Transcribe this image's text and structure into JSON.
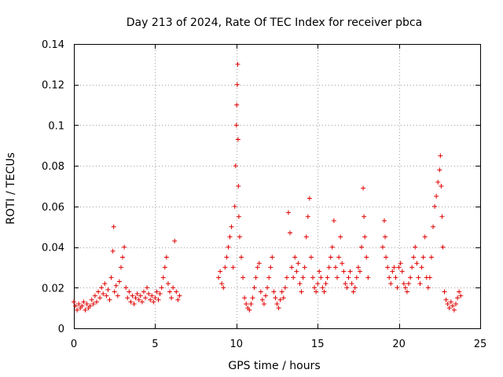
{
  "chart_data": {
    "type": "scatter",
    "title": "Day 213 of 2024, Rate Of TEC Index for receiver pbca",
    "xlabel": "GPS time / hours",
    "ylabel": "ROTI / TECUs",
    "xlim": [
      0,
      25
    ],
    "ylim": [
      0,
      0.14
    ],
    "xticks": [
      0,
      5,
      10,
      15,
      20,
      25
    ],
    "yticks": [
      0,
      0.02,
      0.04,
      0.06,
      0.08,
      0.1,
      0.12,
      0.14
    ],
    "xtick_labels": [
      "0",
      "5",
      "10",
      "15",
      "20",
      "25"
    ],
    "ytick_labels": [
      "0",
      "0.02",
      "0.04",
      "0.06",
      "0.08",
      "0.1",
      "0.12",
      "0.14"
    ],
    "grid": true,
    "marker": "+",
    "color": "#e00000",
    "series": [
      {
        "name": "ROTI",
        "points": [
          [
            0.0,
            0.013
          ],
          [
            0.1,
            0.011
          ],
          [
            0.2,
            0.009
          ],
          [
            0.3,
            0.012
          ],
          [
            0.4,
            0.01
          ],
          [
            0.5,
            0.011
          ],
          [
            0.6,
            0.013
          ],
          [
            0.7,
            0.009
          ],
          [
            0.8,
            0.012
          ],
          [
            0.9,
            0.01
          ],
          [
            1.0,
            0.011
          ],
          [
            1.1,
            0.014
          ],
          [
            1.2,
            0.012
          ],
          [
            1.3,
            0.016
          ],
          [
            1.4,
            0.013
          ],
          [
            1.5,
            0.018
          ],
          [
            1.6,
            0.015
          ],
          [
            1.7,
            0.02
          ],
          [
            1.8,
            0.017
          ],
          [
            1.9,
            0.022
          ],
          [
            2.0,
            0.016
          ],
          [
            2.1,
            0.019
          ],
          [
            2.2,
            0.014
          ],
          [
            2.3,
            0.025
          ],
          [
            2.4,
            0.038
          ],
          [
            2.45,
            0.05
          ],
          [
            2.5,
            0.018
          ],
          [
            2.6,
            0.021
          ],
          [
            2.7,
            0.016
          ],
          [
            2.8,
            0.023
          ],
          [
            2.9,
            0.03
          ],
          [
            3.0,
            0.035
          ],
          [
            3.1,
            0.04
          ],
          [
            3.2,
            0.02
          ],
          [
            3.3,
            0.015
          ],
          [
            3.4,
            0.018
          ],
          [
            3.5,
            0.013
          ],
          [
            3.6,
            0.016
          ],
          [
            3.7,
            0.012
          ],
          [
            3.8,
            0.015
          ],
          [
            3.9,
            0.017
          ],
          [
            4.0,
            0.014
          ],
          [
            4.1,
            0.016
          ],
          [
            4.2,
            0.013
          ],
          [
            4.3,
            0.018
          ],
          [
            4.4,
            0.015
          ],
          [
            4.5,
            0.02
          ],
          [
            4.6,
            0.017
          ],
          [
            4.7,
            0.014
          ],
          [
            4.8,
            0.016
          ],
          [
            4.9,
            0.013
          ],
          [
            5.0,
            0.015
          ],
          [
            5.1,
            0.018
          ],
          [
            5.2,
            0.014
          ],
          [
            5.3,
            0.017
          ],
          [
            5.4,
            0.02
          ],
          [
            5.5,
            0.025
          ],
          [
            5.6,
            0.03
          ],
          [
            5.7,
            0.035
          ],
          [
            5.8,
            0.022
          ],
          [
            5.9,
            0.018
          ],
          [
            6.0,
            0.015
          ],
          [
            6.1,
            0.02
          ],
          [
            6.2,
            0.043
          ],
          [
            6.3,
            0.018
          ],
          [
            6.4,
            0.014
          ],
          [
            6.5,
            0.016
          ],
          [
            8.9,
            0.025
          ],
          [
            9.0,
            0.028
          ],
          [
            9.1,
            0.022
          ],
          [
            9.2,
            0.02
          ],
          [
            9.3,
            0.03
          ],
          [
            9.4,
            0.035
          ],
          [
            9.5,
            0.04
          ],
          [
            9.6,
            0.045
          ],
          [
            9.7,
            0.05
          ],
          [
            9.8,
            0.03
          ],
          [
            9.9,
            0.06
          ],
          [
            9.95,
            0.08
          ],
          [
            10.0,
            0.1
          ],
          [
            10.02,
            0.11
          ],
          [
            10.05,
            0.12
          ],
          [
            10.08,
            0.13
          ],
          [
            10.1,
            0.093
          ],
          [
            10.12,
            0.07
          ],
          [
            10.15,
            0.055
          ],
          [
            10.2,
            0.045
          ],
          [
            10.3,
            0.035
          ],
          [
            10.4,
            0.025
          ],
          [
            10.5,
            0.015
          ],
          [
            10.6,
            0.012
          ],
          [
            10.7,
            0.01
          ],
          [
            10.8,
            0.009
          ],
          [
            10.9,
            0.012
          ],
          [
            11.0,
            0.015
          ],
          [
            11.1,
            0.02
          ],
          [
            11.2,
            0.025
          ],
          [
            11.3,
            0.03
          ],
          [
            11.4,
            0.032
          ],
          [
            11.5,
            0.018
          ],
          [
            11.6,
            0.014
          ],
          [
            11.7,
            0.012
          ],
          [
            11.8,
            0.016
          ],
          [
            11.9,
            0.02
          ],
          [
            12.0,
            0.025
          ],
          [
            12.1,
            0.03
          ],
          [
            12.2,
            0.035
          ],
          [
            12.3,
            0.018
          ],
          [
            12.4,
            0.015
          ],
          [
            12.5,
            0.012
          ],
          [
            12.6,
            0.01
          ],
          [
            12.7,
            0.014
          ],
          [
            12.8,
            0.018
          ],
          [
            12.9,
            0.015
          ],
          [
            13.0,
            0.02
          ],
          [
            13.1,
            0.025
          ],
          [
            13.2,
            0.057
          ],
          [
            13.3,
            0.047
          ],
          [
            13.4,
            0.03
          ],
          [
            13.5,
            0.025
          ],
          [
            13.6,
            0.035
          ],
          [
            13.7,
            0.028
          ],
          [
            13.8,
            0.032
          ],
          [
            13.9,
            0.022
          ],
          [
            14.0,
            0.018
          ],
          [
            14.1,
            0.025
          ],
          [
            14.2,
            0.03
          ],
          [
            14.3,
            0.045
          ],
          [
            14.4,
            0.055
          ],
          [
            14.5,
            0.064
          ],
          [
            14.6,
            0.035
          ],
          [
            14.7,
            0.025
          ],
          [
            14.8,
            0.02
          ],
          [
            14.9,
            0.018
          ],
          [
            15.0,
            0.022
          ],
          [
            15.1,
            0.028
          ],
          [
            15.2,
            0.025
          ],
          [
            15.3,
            0.02
          ],
          [
            15.4,
            0.018
          ],
          [
            15.5,
            0.022
          ],
          [
            15.6,
            0.025
          ],
          [
            15.7,
            0.03
          ],
          [
            15.8,
            0.035
          ],
          [
            15.9,
            0.04
          ],
          [
            16.0,
            0.053
          ],
          [
            16.1,
            0.03
          ],
          [
            16.2,
            0.025
          ],
          [
            16.3,
            0.035
          ],
          [
            16.4,
            0.045
          ],
          [
            16.5,
            0.032
          ],
          [
            16.6,
            0.028
          ],
          [
            16.7,
            0.022
          ],
          [
            16.8,
            0.02
          ],
          [
            16.9,
            0.025
          ],
          [
            17.0,
            0.028
          ],
          [
            17.1,
            0.022
          ],
          [
            17.2,
            0.018
          ],
          [
            17.3,
            0.02
          ],
          [
            17.4,
            0.025
          ],
          [
            17.5,
            0.03
          ],
          [
            17.6,
            0.028
          ],
          [
            17.7,
            0.04
          ],
          [
            17.8,
            0.069
          ],
          [
            17.85,
            0.055
          ],
          [
            17.9,
            0.045
          ],
          [
            18.0,
            0.035
          ],
          [
            18.1,
            0.025
          ],
          [
            19.0,
            0.04
          ],
          [
            19.1,
            0.053
          ],
          [
            19.15,
            0.045
          ],
          [
            19.2,
            0.035
          ],
          [
            19.3,
            0.03
          ],
          [
            19.4,
            0.025
          ],
          [
            19.5,
            0.022
          ],
          [
            19.6,
            0.028
          ],
          [
            19.7,
            0.03
          ],
          [
            19.8,
            0.025
          ],
          [
            19.9,
            0.02
          ],
          [
            20.0,
            0.03
          ],
          [
            20.1,
            0.032
          ],
          [
            20.2,
            0.028
          ],
          [
            20.3,
            0.022
          ],
          [
            20.4,
            0.02
          ],
          [
            20.5,
            0.018
          ],
          [
            20.6,
            0.022
          ],
          [
            20.7,
            0.025
          ],
          [
            20.8,
            0.03
          ],
          [
            20.9,
            0.035
          ],
          [
            21.0,
            0.04
          ],
          [
            21.1,
            0.032
          ],
          [
            21.2,
            0.025
          ],
          [
            21.3,
            0.022
          ],
          [
            21.4,
            0.03
          ],
          [
            21.5,
            0.035
          ],
          [
            21.6,
            0.045
          ],
          [
            21.7,
            0.025
          ],
          [
            21.8,
            0.02
          ],
          [
            21.9,
            0.025
          ],
          [
            22.0,
            0.035
          ],
          [
            22.1,
            0.05
          ],
          [
            22.2,
            0.06
          ],
          [
            22.3,
            0.065
          ],
          [
            22.4,
            0.072
          ],
          [
            22.5,
            0.078
          ],
          [
            22.55,
            0.085
          ],
          [
            22.6,
            0.07
          ],
          [
            22.65,
            0.055
          ],
          [
            22.7,
            0.04
          ],
          [
            22.8,
            0.018
          ],
          [
            22.9,
            0.014
          ],
          [
            23.0,
            0.012
          ],
          [
            23.1,
            0.01
          ],
          [
            23.2,
            0.013
          ],
          [
            23.3,
            0.011
          ],
          [
            23.4,
            0.009
          ],
          [
            23.5,
            0.012
          ],
          [
            23.6,
            0.015
          ],
          [
            23.7,
            0.018
          ],
          [
            23.8,
            0.016
          ]
        ]
      }
    ]
  }
}
